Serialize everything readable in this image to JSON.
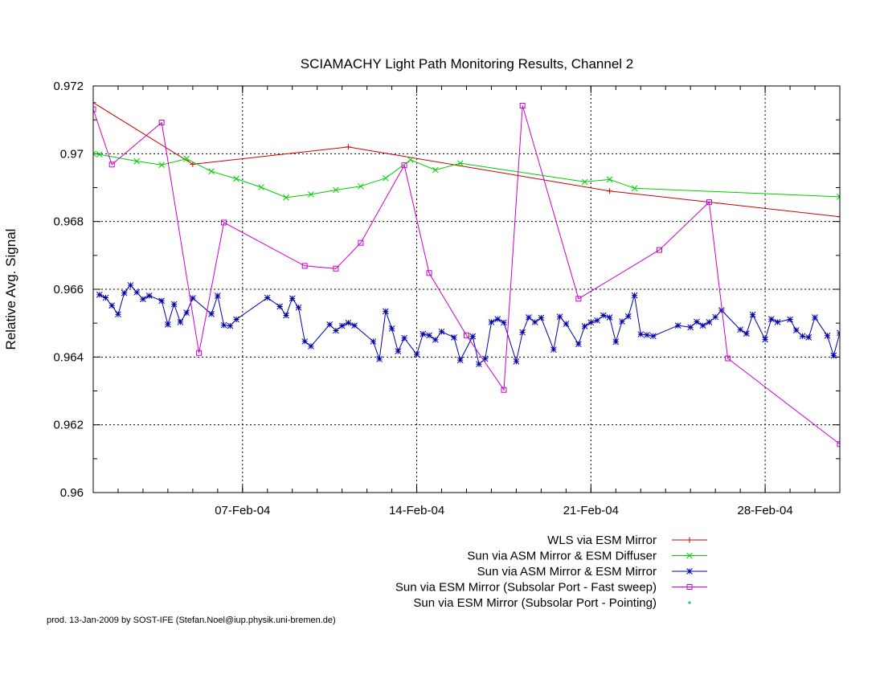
{
  "chart_data": {
    "type": "line",
    "title": "SCIAMACHY Light Path Monitoring Results, Channel 2",
    "xlabel": "",
    "ylabel": "Relative Avg. Signal",
    "x_is_date": true,
    "xlim": [
      "2004-02-01",
      "2004-03-02"
    ],
    "ylim": [
      0.96,
      0.972
    ],
    "yticks": [
      0.96,
      0.962,
      0.964,
      0.966,
      0.968,
      0.97,
      0.972
    ],
    "ytick_labels": [
      "0.96",
      "0.962",
      "0.964",
      "0.966",
      "0.968",
      "0.97",
      "0.972"
    ],
    "xticks": [
      "2004-02-07",
      "2004-02-14",
      "2004-02-21",
      "2004-02-28"
    ],
    "xtick_labels": [
      "07-Feb-04",
      "14-Feb-04",
      "21-Feb-04",
      "28-Feb-04"
    ],
    "grid": true,
    "legend_position": "bottom-right",
    "series": [
      {
        "name": "WLS via ESM Mirror",
        "color": "#cc0000",
        "marker": "plus",
        "points": [
          [
            "2004-02-01 00:00",
            0.97151
          ],
          [
            "2004-02-05 00:00",
            0.96969
          ],
          [
            "2004-02-11 06:00",
            0.9702
          ],
          [
            "2004-02-21 18:00",
            0.9689
          ],
          [
            "2004-03-02 00:00",
            0.96814
          ]
        ]
      },
      {
        "name": "Sun via ASM Mirror & ESM Diffuser",
        "color": "#00cc00",
        "marker": "cross",
        "points": [
          [
            "2004-02-01 00:00",
            0.97
          ],
          [
            "2004-02-01 06:00",
            0.96998
          ],
          [
            "2004-02-02 18:00",
            0.96978
          ],
          [
            "2004-02-03 18:00",
            0.96967
          ],
          [
            "2004-02-04 18:00",
            0.96985
          ],
          [
            "2004-02-05 18:00",
            0.96948
          ],
          [
            "2004-02-06 18:00",
            0.96926
          ],
          [
            "2004-02-07 18:00",
            0.96901
          ],
          [
            "2004-02-08 18:00",
            0.96871
          ],
          [
            "2004-02-09 18:00",
            0.9688
          ],
          [
            "2004-02-10 18:00",
            0.96893
          ],
          [
            "2004-02-11 18:00",
            0.96904
          ],
          [
            "2004-02-12 18:00",
            0.96928
          ],
          [
            "2004-02-13 18:00",
            0.96982
          ],
          [
            "2004-02-14 18:00",
            0.96952
          ],
          [
            "2004-02-15 18:00",
            0.96972
          ],
          [
            "2004-02-20 18:00",
            0.96917
          ],
          [
            "2004-02-21 18:00",
            0.96924
          ],
          [
            "2004-02-22 18:00",
            0.96898
          ],
          [
            "2004-03-02 00:00",
            0.96873
          ]
        ]
      },
      {
        "name": "Sun via ASM Mirror & ESM Mirror",
        "color": "#0000aa",
        "marker": "star",
        "points": [
          [
            "2004-02-01 06:00",
            0.96584
          ],
          [
            "2004-02-01 12:00",
            0.96575
          ],
          [
            "2004-02-01 18:00",
            0.96552
          ],
          [
            "2004-02-02 00:00",
            0.96526
          ],
          [
            "2004-02-02 06:00",
            0.96589
          ],
          [
            "2004-02-02 12:00",
            0.96612
          ],
          [
            "2004-02-02 18:00",
            0.96591
          ],
          [
            "2004-02-03 00:00",
            0.96571
          ],
          [
            "2004-02-03 06:00",
            0.96581
          ],
          [
            "2004-02-03 18:00",
            0.96566
          ],
          [
            "2004-02-04 00:00",
            0.96496
          ],
          [
            "2004-02-04 06:00",
            0.96556
          ],
          [
            "2004-02-04 12:00",
            0.96503
          ],
          [
            "2004-02-04 18:00",
            0.96531
          ],
          [
            "2004-02-05 00:00",
            0.96574
          ],
          [
            "2004-02-05 18:00",
            0.96527
          ],
          [
            "2004-02-06 00:00",
            0.96581
          ],
          [
            "2004-02-06 06:00",
            0.96494
          ],
          [
            "2004-02-06 12:00",
            0.96492
          ],
          [
            "2004-02-06 18:00",
            0.96511
          ],
          [
            "2004-02-08 00:00",
            0.96575
          ],
          [
            "2004-02-08 12:00",
            0.96549
          ],
          [
            "2004-02-08 18:00",
            0.96523
          ],
          [
            "2004-02-09 00:00",
            0.96573
          ],
          [
            "2004-02-09 06:00",
            0.96546
          ],
          [
            "2004-02-09 12:00",
            0.96446
          ],
          [
            "2004-02-09 18:00",
            0.96432
          ],
          [
            "2004-02-10 12:00",
            0.96496
          ],
          [
            "2004-02-10 18:00",
            0.96478
          ],
          [
            "2004-02-11 00:00",
            0.96492
          ],
          [
            "2004-02-11 06:00",
            0.96501
          ],
          [
            "2004-02-11 12:00",
            0.96493
          ],
          [
            "2004-02-12 06:00",
            0.96446
          ],
          [
            "2004-02-12 12:00",
            0.96394
          ],
          [
            "2004-02-12 18:00",
            0.96535
          ],
          [
            "2004-02-13 00:00",
            0.96484
          ],
          [
            "2004-02-13 06:00",
            0.96417
          ],
          [
            "2004-02-13 12:00",
            0.96456
          ],
          [
            "2004-02-14 00:00",
            0.96408
          ],
          [
            "2004-02-14 06:00",
            0.96468
          ],
          [
            "2004-02-14 12:00",
            0.96464
          ],
          [
            "2004-02-14 18:00",
            0.96451
          ],
          [
            "2004-02-15 00:00",
            0.96475
          ],
          [
            "2004-02-15 12:00",
            0.96458
          ],
          [
            "2004-02-15 18:00",
            0.96391
          ],
          [
            "2004-02-16 06:00",
            0.96461
          ],
          [
            "2004-02-16 12:00",
            0.96379
          ],
          [
            "2004-02-16 18:00",
            0.96395
          ],
          [
            "2004-02-17 00:00",
            0.96503
          ],
          [
            "2004-02-17 06:00",
            0.96512
          ],
          [
            "2004-02-17 12:00",
            0.96502
          ],
          [
            "2004-02-18 00:00",
            0.96387
          ],
          [
            "2004-02-18 06:00",
            0.96473
          ],
          [
            "2004-02-18 12:00",
            0.96517
          ],
          [
            "2004-02-18 18:00",
            0.96503
          ],
          [
            "2004-02-19 00:00",
            0.96516
          ],
          [
            "2004-02-19 12:00",
            0.96422
          ],
          [
            "2004-02-19 18:00",
            0.96519
          ],
          [
            "2004-02-20 00:00",
            0.96498
          ],
          [
            "2004-02-20 12:00",
            0.96438
          ],
          [
            "2004-02-20 18:00",
            0.96491
          ],
          [
            "2004-02-21 00:00",
            0.96502
          ],
          [
            "2004-02-21 06:00",
            0.96508
          ],
          [
            "2004-02-21 12:00",
            0.96523
          ],
          [
            "2004-02-21 18:00",
            0.96517
          ],
          [
            "2004-02-22 00:00",
            0.96445
          ],
          [
            "2004-02-22 06:00",
            0.96505
          ],
          [
            "2004-02-22 12:00",
            0.9652
          ],
          [
            "2004-02-22 18:00",
            0.96582
          ],
          [
            "2004-02-23 00:00",
            0.96467
          ],
          [
            "2004-02-23 06:00",
            0.96465
          ],
          [
            "2004-02-23 12:00",
            0.96462
          ],
          [
            "2004-02-24 12:00",
            0.96493
          ],
          [
            "2004-02-25 00:00",
            0.96488
          ],
          [
            "2004-02-25 06:00",
            0.96504
          ],
          [
            "2004-02-25 12:00",
            0.96493
          ],
          [
            "2004-02-25 18:00",
            0.96503
          ],
          [
            "2004-02-26 00:00",
            0.96518
          ],
          [
            "2004-02-26 06:00",
            0.96538
          ],
          [
            "2004-02-27 00:00",
            0.96481
          ],
          [
            "2004-02-27 06:00",
            0.96469
          ],
          [
            "2004-02-27 12:00",
            0.96525
          ],
          [
            "2004-02-28 00:00",
            0.96452
          ],
          [
            "2004-02-28 06:00",
            0.96512
          ],
          [
            "2004-02-28 12:00",
            0.96503
          ],
          [
            "2004-02-29 00:00",
            0.96511
          ],
          [
            "2004-02-29 06:00",
            0.96479
          ],
          [
            "2004-02-29 12:00",
            0.96462
          ],
          [
            "2004-02-29 18:00",
            0.96458
          ],
          [
            "2004-03-01 00:00",
            0.96517
          ],
          [
            "2004-03-01 12:00",
            0.96463
          ],
          [
            "2004-03-01 18:00",
            0.96404
          ],
          [
            "2004-03-02 00:00",
            0.96471
          ]
        ]
      },
      {
        "name": "Sun via ESM Mirror (Subsolar Port - Fast sweep)",
        "color": "#cc00cc",
        "marker": "square",
        "points": [
          [
            "2004-02-01 00:00",
            0.97131
          ],
          [
            "2004-02-01 18:00",
            0.96968
          ],
          [
            "2004-02-03 18:00",
            0.97092
          ],
          [
            "2004-02-05 06:00",
            0.96412
          ],
          [
            "2004-02-06 06:00",
            0.96797
          ],
          [
            "2004-02-09 12:00",
            0.96669
          ],
          [
            "2004-02-10 18:00",
            0.96661
          ],
          [
            "2004-02-11 18:00",
            0.96737
          ],
          [
            "2004-02-13 12:00",
            0.96966
          ],
          [
            "2004-02-14 12:00",
            0.96648
          ],
          [
            "2004-02-16 00:00",
            0.96464
          ],
          [
            "2004-02-17 12:00",
            0.96303
          ],
          [
            "2004-02-18 06:00",
            0.97142
          ],
          [
            "2004-02-20 12:00",
            0.96572
          ],
          [
            "2004-02-23 18:00",
            0.96716
          ],
          [
            "2004-02-25 18:00",
            0.96857
          ],
          [
            "2004-02-26 12:00",
            0.96396
          ],
          [
            "2004-03-02 00:00",
            0.96143
          ]
        ]
      },
      {
        "name": "Sun via ESM Mirror (Subsolar Port - Pointing)",
        "color": "#00cccc",
        "marker": "dot",
        "points": []
      }
    ]
  },
  "footer": "prod. 13-Jan-2009 by SOST-IFE (Stefan.Noel@iup.physik.uni-bremen.de)"
}
